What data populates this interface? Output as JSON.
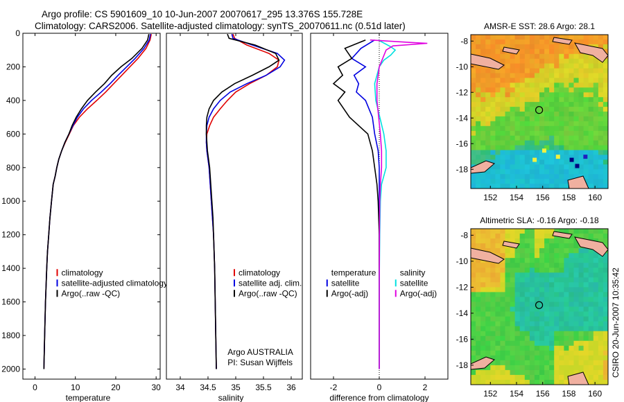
{
  "header": {
    "line1": "Argo profile: CS 5901609_10 10-Jun-2007 20070617_295 13.376S 155.728E",
    "line2": "Climatology: CARS2006. Satellite-adjusted climatology: synTS_20070611.nc (0.51d later)"
  },
  "footer_label": "CSIRO 20-Jun-2007 10:35:42",
  "chart_data": [
    {
      "type": "line",
      "id": "temperature",
      "xlabel": "temperature",
      "ylabel": "",
      "xlim": [
        -3,
        31
      ],
      "ylim": [
        2060,
        0
      ],
      "xticks": [
        0,
        10,
        20,
        30
      ],
      "yticks": [
        0,
        200,
        400,
        600,
        800,
        1000,
        1200,
        1400,
        1600,
        1800,
        2000
      ],
      "legend": [
        "climatology",
        "satellite-adjusted climatology",
        "Argo(..raw -QC)"
      ],
      "series": [
        {
          "name": "climatology",
          "color": "#e00000",
          "x": [
            28.8,
            28.5,
            27.5,
            25.5,
            23.5,
            21.5,
            19.5,
            17.5,
            15.3,
            13,
            11,
            9.5,
            8.5,
            7.5,
            6.6,
            5.9,
            5.4,
            5,
            4.5,
            4.1,
            3.7,
            3.4,
            3.1,
            2.9,
            2.6,
            2.4,
            2.2
          ],
          "y": [
            5,
            40,
            90,
            150,
            200,
            250,
            300,
            350,
            400,
            450,
            500,
            550,
            600,
            650,
            700,
            750,
            800,
            850,
            900,
            1000,
            1100,
            1200,
            1300,
            1400,
            1600,
            1800,
            2000
          ]
        },
        {
          "name": "satellite-adjusted climatology",
          "color": "#0000e0",
          "x": [
            28.6,
            28.3,
            27,
            24.8,
            22.7,
            20.6,
            18.6,
            16.4,
            14,
            12,
            10.5,
            9.4,
            8.4,
            7.4,
            6.6,
            5.9,
            5.4,
            5,
            4.5,
            4.1,
            3.7,
            3.4,
            3.1,
            2.9,
            2.6,
            2.4,
            2.2
          ],
          "y": [
            5,
            40,
            90,
            150,
            200,
            250,
            300,
            350,
            400,
            450,
            500,
            550,
            600,
            650,
            700,
            750,
            800,
            850,
            900,
            1000,
            1100,
            1200,
            1300,
            1400,
            1600,
            1800,
            2000
          ]
        },
        {
          "name": "Argo(..raw -QC)",
          "color": "#000000",
          "x": [
            28.2,
            27.9,
            26.5,
            24,
            21.3,
            19,
            17.2,
            15,
            13,
            11.5,
            10.2,
            9.2,
            8.4,
            7.4,
            6.6,
            5.9,
            5.4,
            5,
            4.5,
            4.1,
            3.7,
            3.4,
            3.1,
            2.9,
            2.6,
            2.4,
            2.2
          ],
          "y": [
            5,
            40,
            90,
            150,
            200,
            250,
            300,
            350,
            400,
            450,
            500,
            550,
            600,
            650,
            700,
            750,
            800,
            850,
            900,
            1000,
            1100,
            1200,
            1300,
            1400,
            1600,
            1800,
            2000
          ]
        }
      ]
    },
    {
      "type": "line",
      "id": "salinity",
      "xlabel": "salinity",
      "xlim": [
        33.75,
        36.2
      ],
      "ylim": [
        2060,
        0
      ],
      "xticks": [
        34,
        34.5,
        35,
        35.5,
        36
      ],
      "legend": [
        "climatology",
        "satellite adj. clim.",
        "Argo(..raw -QC)"
      ],
      "annotation": [
        "Argo AUSTRALIA",
        "PI: Susan Wijffels"
      ],
      "series": [
        {
          "name": "climatology",
          "color": "#e00000",
          "x": [
            34.95,
            34.98,
            35.2,
            35.6,
            35.78,
            35.75,
            35.55,
            35.25,
            35,
            34.85,
            34.72,
            34.6,
            34.53,
            34.48,
            34.47,
            34.48,
            34.5,
            34.52,
            34.54,
            34.56,
            34.58,
            34.6,
            34.61,
            34.62,
            34.63,
            34.64,
            34.65
          ],
          "y": [
            5,
            30,
            70,
            120,
            160,
            200,
            250,
            300,
            350,
            400,
            450,
            500,
            550,
            600,
            650,
            700,
            750,
            800,
            900,
            1000,
            1100,
            1200,
            1300,
            1400,
            1600,
            1800,
            2000
          ]
        },
        {
          "name": "satellite adj. clim.",
          "color": "#0000e0",
          "x": [
            34.93,
            34.95,
            35.3,
            35.75,
            35.88,
            35.8,
            35.55,
            35.2,
            34.9,
            34.72,
            34.6,
            34.52,
            34.48,
            34.47,
            34.47,
            34.48,
            34.5,
            34.52,
            34.54,
            34.56,
            34.58,
            34.6,
            34.61,
            34.62,
            34.63,
            34.64,
            34.65
          ],
          "y": [
            5,
            30,
            70,
            120,
            160,
            200,
            250,
            300,
            350,
            400,
            450,
            500,
            550,
            600,
            650,
            700,
            750,
            800,
            900,
            1000,
            1100,
            1200,
            1300,
            1400,
            1600,
            1800,
            2000
          ]
        },
        {
          "name": "Argo(..raw -QC)",
          "color": "#000000",
          "x": [
            34.85,
            34.88,
            35.35,
            35.72,
            35.78,
            35.6,
            35.3,
            34.98,
            34.75,
            34.6,
            34.52,
            34.48,
            34.47,
            34.47,
            34.48,
            34.49,
            34.51,
            34.53,
            34.55,
            34.57,
            34.59,
            34.6,
            34.61,
            34.62,
            34.63,
            34.64,
            34.65
          ],
          "y": [
            5,
            30,
            70,
            120,
            160,
            200,
            250,
            300,
            350,
            400,
            450,
            500,
            550,
            600,
            650,
            700,
            750,
            800,
            900,
            1000,
            1100,
            1200,
            1300,
            1400,
            1600,
            1800,
            2000
          ]
        }
      ]
    },
    {
      "type": "line",
      "id": "difference",
      "xlabel": "difference from climatology",
      "xlim": [
        -3,
        3
      ],
      "ylim": [
        2060,
        0
      ],
      "xticks": [
        -2,
        0,
        2
      ],
      "legend_left": [
        "temperature",
        "satellite",
        "Argo(-adj)"
      ],
      "legend_right": [
        "salinity",
        "satellite",
        "Argo(-adj)"
      ],
      "series": [
        {
          "name": "temperature satellite",
          "color": "#0000e0",
          "x": [
            -0.2,
            -0.8,
            -1.2,
            -0.6,
            -1.1,
            -0.9,
            -1.0,
            -0.6,
            -0.3,
            -0.2,
            -0.05,
            0,
            0,
            0,
            0,
            0,
            0
          ],
          "y": [
            40,
            90,
            150,
            200,
            250,
            300,
            350,
            400,
            500,
            600,
            700,
            800,
            900,
            1000,
            1200,
            1500,
            2000
          ]
        },
        {
          "name": "temperature Argo(-adj)",
          "color": "#000000",
          "x": [
            -0.6,
            -1.5,
            -1.2,
            -1.8,
            -1.6,
            -2.0,
            -1.5,
            -1.8,
            -1.3,
            -0.5,
            -0.3,
            -0.2,
            -0.1,
            -0.05,
            0,
            0,
            0
          ],
          "y": [
            40,
            90,
            150,
            200,
            250,
            300,
            350,
            400,
            500,
            600,
            700,
            800,
            900,
            1000,
            1200,
            1500,
            2000
          ]
        },
        {
          "name": "salinity satellite",
          "color": "#00e0e0",
          "x": [
            -0.05,
            0.5,
            0.7,
            0.5,
            0.2,
            0.0,
            -0.1,
            -0.2,
            -0.15,
            0.2,
            0.3,
            0.3,
            0.1,
            0.05,
            0.02,
            0,
            0
          ],
          "y": [
            40,
            80,
            100,
            130,
            160,
            200,
            250,
            300,
            400,
            600,
            700,
            800,
            900,
            1000,
            1200,
            1500,
            2000
          ]
        },
        {
          "name": "salinity Argo(-adj)",
          "color": "#e000e0",
          "x": [
            -0.4,
            1.4,
            2.1,
            0.6,
            0.3,
            0.0,
            -0.05,
            -0.1,
            -0.1,
            0.05,
            0.1,
            0.1,
            0.05,
            0.02,
            0.01,
            0,
            0
          ],
          "y": [
            40,
            55,
            60,
            75,
            100,
            200,
            250,
            300,
            400,
            600,
            700,
            800,
            900,
            1000,
            1200,
            1500,
            2000
          ]
        }
      ]
    },
    {
      "type": "heatmap",
      "id": "sst",
      "title": "AMSR-E SST: 28.6 Argo: 28.1",
      "xlim": [
        150.5,
        161
      ],
      "ylim": [
        -19.5,
        -7.5
      ],
      "xticks": [
        152,
        154,
        156,
        158,
        160
      ],
      "yticks": [
        -8,
        -10,
        -12,
        -14,
        -16,
        -18
      ],
      "marker": {
        "lon": 155.728,
        "lat": -13.376
      }
    },
    {
      "type": "heatmap",
      "id": "sla",
      "title": "Altimetric SLA: -0.16 Argo: -0.18",
      "xlim": [
        150.5,
        161
      ],
      "ylim": [
        -19.5,
        -7.5
      ],
      "xticks": [
        152,
        154,
        156,
        158,
        160
      ],
      "yticks": [
        -8,
        -10,
        -12,
        -14,
        -16,
        -18
      ],
      "marker": {
        "lon": 155.728,
        "lat": -13.376
      }
    }
  ]
}
